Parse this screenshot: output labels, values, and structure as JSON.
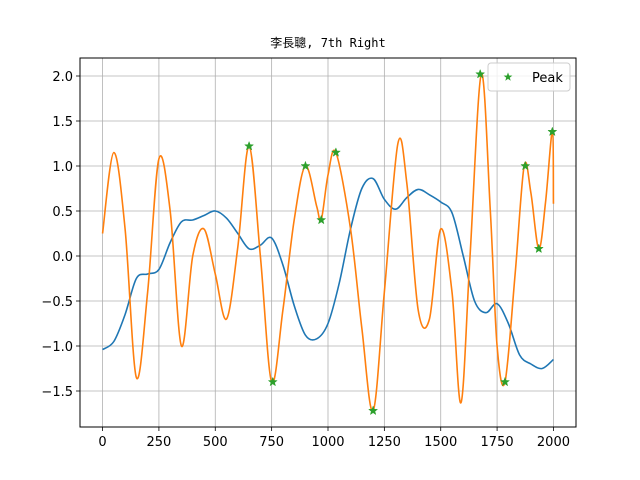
{
  "chart_data": {
    "type": "line",
    "title": "李長聰, 7th Right",
    "xlabel": "",
    "ylabel": "",
    "xlim": [
      -100,
      2100
    ],
    "ylim": [
      -1.9,
      2.2
    ],
    "xticks": [
      0,
      250,
      500,
      750,
      1000,
      1250,
      1500,
      1750,
      2000
    ],
    "yticks": [
      -1.5,
      -1.0,
      -0.5,
      0.0,
      0.5,
      1.0,
      1.5,
      2.0
    ],
    "grid": true,
    "legend_placement": "upper-right",
    "series": [
      {
        "color": "#1f77b4",
        "x": [
          0,
          50,
          100,
          150,
          200,
          250,
          300,
          350,
          400,
          450,
          500,
          550,
          600,
          650,
          700,
          750,
          800,
          850,
          900,
          950,
          1000,
          1050,
          1100,
          1150,
          1200,
          1250,
          1300,
          1350,
          1400,
          1450,
          1500,
          1550,
          1600,
          1650,
          1700,
          1750,
          1800,
          1850,
          1900,
          1950,
          2000
        ],
        "y": [
          -1.04,
          -0.95,
          -0.65,
          -0.25,
          -0.2,
          -0.15,
          0.15,
          0.38,
          0.4,
          0.45,
          0.5,
          0.42,
          0.25,
          0.08,
          0.12,
          0.2,
          -0.1,
          -0.55,
          -0.88,
          -0.92,
          -0.75,
          -0.3,
          0.3,
          0.75,
          0.86,
          0.63,
          0.52,
          0.65,
          0.74,
          0.68,
          0.6,
          0.48,
          0.0,
          -0.5,
          -0.63,
          -0.53,
          -0.75,
          -1.1,
          -1.2,
          -1.25,
          -1.15
        ]
      },
      {
        "color": "#ff7f0e",
        "x": [
          0,
          50,
          100,
          150,
          200,
          250,
          300,
          350,
          400,
          450,
          500,
          550,
          600,
          650,
          700,
          750,
          800,
          850,
          900,
          950,
          970,
          1000,
          1035,
          1100,
          1150,
          1200,
          1250,
          1310,
          1350,
          1400,
          1450,
          1500,
          1550,
          1590,
          1630,
          1680,
          1720,
          1750,
          1785,
          1830,
          1870,
          1900,
          1935,
          1965,
          1995,
          2000
        ],
        "y": [
          0.25,
          1.15,
          0.3,
          -1.35,
          -0.4,
          1.08,
          0.5,
          -1.0,
          0.0,
          0.3,
          -0.2,
          -0.7,
          0.1,
          1.22,
          0.0,
          -1.4,
          -0.6,
          0.4,
          1.0,
          0.55,
          0.4,
          0.9,
          1.15,
          0.3,
          -0.8,
          -1.72,
          -0.4,
          1.25,
          0.8,
          -0.6,
          -0.7,
          0.3,
          -0.4,
          -1.63,
          0.0,
          2.02,
          0.5,
          -1.0,
          -1.4,
          -0.2,
          1.0,
          0.7,
          0.08,
          0.6,
          1.38,
          0.58
        ]
      }
    ],
    "markers": {
      "name": "Peak",
      "color": "#2ca02c",
      "x": [
        650,
        755,
        900,
        970,
        1035,
        1200,
        1675,
        1785,
        1875,
        1935,
        1995
      ],
      "y": [
        1.22,
        -1.4,
        1.0,
        0.4,
        1.15,
        -1.72,
        2.02,
        -1.4,
        1.0,
        0.08,
        1.38
      ]
    }
  }
}
